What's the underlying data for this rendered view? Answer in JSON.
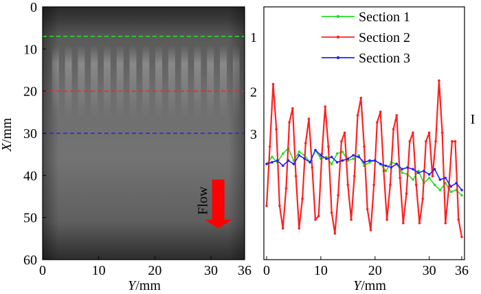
{
  "chart_data": [
    {
      "type": "heatmap",
      "xlabel_var": "Y",
      "xlabel_unit": "/mm",
      "ylabel_var": "X",
      "ylabel_unit": "/mm",
      "xlim": [
        0,
        36
      ],
      "ylim": [
        0,
        60
      ],
      "x_ticks": [
        0,
        10,
        20,
        30,
        36
      ],
      "y_ticks": [
        0,
        10,
        20,
        30,
        40,
        50,
        60
      ],
      "sections": [
        {
          "label": "1",
          "x_mm": 7,
          "color": "#22dd22"
        },
        {
          "label": "2",
          "x_mm": 20,
          "color": "#ff2020"
        },
        {
          "label": "3",
          "x_mm": 30,
          "color": "#2020ff"
        }
      ],
      "flow_label": "Flow",
      "flow_arrow_color": "#ff0000",
      "stripe_columns_y_mm": [
        2.3,
        4.6,
        6.9,
        9.2,
        11.5,
        13.8,
        16.1,
        18.4,
        20.7,
        23.0,
        25.3,
        27.6,
        29.9,
        32.2,
        34.5
      ]
    },
    {
      "type": "line",
      "xlabel_var": "Y",
      "xlabel_unit": "/mm",
      "ylabel_fragment": "I",
      "xlim": [
        0,
        36
      ],
      "ylim": [
        0,
        1
      ],
      "x_ticks": [
        0,
        10,
        20,
        30,
        36
      ],
      "legend_position": "top-right",
      "series": [
        {
          "name": "Section 1",
          "color": "#22dd22",
          "x": [
            0,
            1,
            2,
            3,
            4,
            5,
            6,
            7,
            8,
            9,
            10,
            11,
            12,
            13,
            14,
            15,
            16,
            17,
            18,
            19,
            20,
            21,
            22,
            23,
            24,
            25,
            26,
            27,
            28,
            29,
            30,
            31,
            32,
            33,
            34,
            35,
            36
          ],
          "y": [
            0.42,
            0.46,
            0.43,
            0.48,
            0.51,
            0.44,
            0.49,
            0.47,
            0.43,
            0.5,
            0.45,
            0.46,
            0.42,
            0.48,
            0.49,
            0.44,
            0.45,
            0.47,
            0.41,
            0.43,
            0.44,
            0.42,
            0.38,
            0.43,
            0.42,
            0.37,
            0.36,
            0.33,
            0.38,
            0.31,
            0.34,
            0.3,
            0.27,
            0.31,
            0.26,
            0.27,
            0.24
          ]
        },
        {
          "name": "Section 2",
          "color": "#ff2020",
          "x": [
            0,
            0.6,
            1.2,
            1.8,
            2.4,
            3.0,
            3.6,
            4.2,
            4.8,
            5.4,
            6.0,
            6.6,
            7.2,
            7.8,
            8.4,
            9.0,
            9.6,
            10.2,
            10.8,
            11.4,
            12.0,
            12.6,
            13.2,
            13.8,
            14.4,
            15.0,
            15.6,
            16.2,
            16.8,
            17.4,
            18.0,
            18.6,
            19.2,
            19.8,
            20.4,
            21.0,
            21.6,
            22.2,
            22.8,
            23.4,
            24.0,
            24.6,
            25.2,
            25.8,
            26.4,
            27.0,
            27.6,
            28.2,
            28.8,
            29.4,
            30.0,
            30.6,
            31.2,
            31.8,
            32.4,
            33.0,
            33.6,
            34.2,
            34.8,
            35.4,
            36.0
          ],
          "y": [
            0.18,
            0.52,
            0.88,
            0.62,
            0.18,
            0.05,
            0.28,
            0.66,
            0.74,
            0.35,
            0.05,
            0.22,
            0.54,
            0.68,
            0.4,
            0.1,
            0.12,
            0.48,
            0.75,
            0.52,
            0.14,
            0.02,
            0.24,
            0.55,
            0.6,
            0.3,
            0.1,
            0.35,
            0.7,
            0.8,
            0.52,
            0.16,
            0.04,
            0.3,
            0.66,
            0.72,
            0.38,
            0.1,
            0.3,
            0.62,
            0.7,
            0.34,
            0.08,
            0.25,
            0.55,
            0.6,
            0.3,
            0.08,
            0.22,
            0.55,
            0.6,
            0.35,
            0.55,
            0.9,
            0.6,
            0.08,
            0.28,
            0.55,
            0.55,
            0.1,
            0.0
          ]
        },
        {
          "name": "Section 3",
          "color": "#2020ff",
          "x": [
            0,
            1,
            2,
            3,
            4,
            5,
            6,
            7,
            8,
            9,
            10,
            11,
            12,
            13,
            14,
            15,
            16,
            17,
            18,
            19,
            20,
            21,
            22,
            23,
            24,
            25,
            26,
            27,
            28,
            29,
            30,
            31,
            32,
            33,
            34,
            35,
            36
          ],
          "y": [
            0.42,
            0.43,
            0.44,
            0.41,
            0.44,
            0.42,
            0.47,
            0.45,
            0.43,
            0.5,
            0.47,
            0.45,
            0.46,
            0.43,
            0.44,
            0.45,
            0.47,
            0.46,
            0.43,
            0.44,
            0.44,
            0.42,
            0.41,
            0.4,
            0.42,
            0.39,
            0.4,
            0.39,
            0.37,
            0.38,
            0.36,
            0.39,
            0.33,
            0.34,
            0.29,
            0.31,
            0.27
          ]
        }
      ]
    }
  ]
}
